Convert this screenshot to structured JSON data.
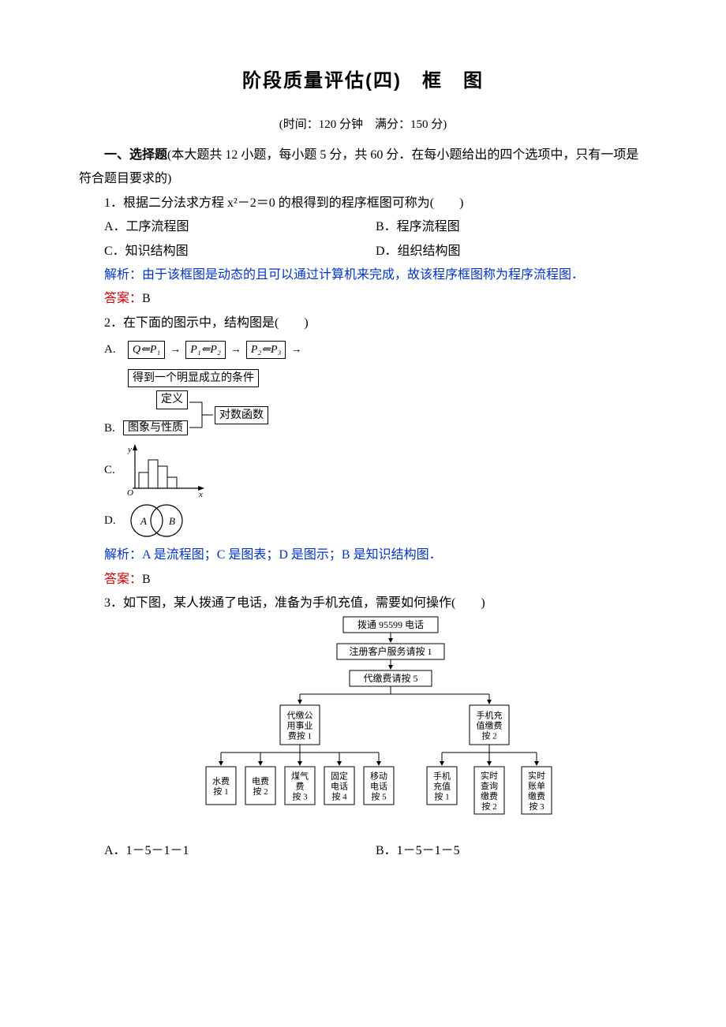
{
  "title": "阶段质量评估(四)　框　图",
  "meta": "(时间：120 分钟　满分：150 分)",
  "section1_label": "一、选择题",
  "section1_desc": "(本大题共 12 小题，每小题 5 分，共 60 分．在每小题给出的四个选项中，只有一项是符合题目要求的)",
  "q1": {
    "stem": "1．根据二分法求方程 x²－2＝0 的根得到的程序框图可称为(　　)",
    "A": "A．工序流程图",
    "B": "B．程序流程图",
    "C": "C．知识结构图",
    "D": "D．组织结构图",
    "analysis_label": "解析：",
    "analysis_body": "由于该框图是动态的且可以通过计算机来完成，故该程序框图称为程序流程图．",
    "answer_label": "答案：",
    "answer": "B"
  },
  "q2": {
    "stem": "2．在下面的图示中，结构图是(　　)",
    "A": {
      "label": "A.",
      "b1": "Q⇐P₁",
      "b2": "P₁⇐P₂",
      "b3": "P₂⇐P₃",
      "b4": "得到一个明显成立的条件"
    },
    "B": {
      "label": "B.",
      "t1": "定义",
      "t2": "图象与性质",
      "t3": "对数函数"
    },
    "C": {
      "label": "C.",
      "xlabel": "x",
      "ylabel": "y",
      "origin": "O"
    },
    "D": {
      "label": "D.",
      "left": "A",
      "right": "B"
    },
    "analysis_label": "解析：",
    "analysis_body": "A 是流程图；C 是图表；D 是图示；B 是知识结构图．",
    "answer_label": "答案：",
    "answer": "B"
  },
  "q3": {
    "stem": "3．如下图，某人拨通了电话，准备为手机充值，需要如何操作(　　)",
    "tree": {
      "n1": "拨通 95599 电话",
      "n2": "注册客户服务请按 1",
      "n3": "代缴费请按 5",
      "n4": "代缴公\n用事业\n费按 1",
      "n5": "手机充\n值缴费\n按 2",
      "l1": "水费\n按 1",
      "l2": "电费\n按 2",
      "l3": "煤气\n费\n按 3",
      "l4": "固定\n电话\n按 4",
      "l5": "移动\n电话\n按 5",
      "l6": "手机\n充值\n按 1",
      "l7": "实时\n查询\n缴费\n按 2",
      "l8": "实时\n账单\n缴费\n按 3"
    },
    "A": "A．1－5－1－1",
    "B": "B．1－5－1－5",
    "colors": {
      "line": "#000000",
      "box_fill": "#ffffff",
      "box_stroke": "#000000",
      "arrow": "#000000"
    }
  }
}
